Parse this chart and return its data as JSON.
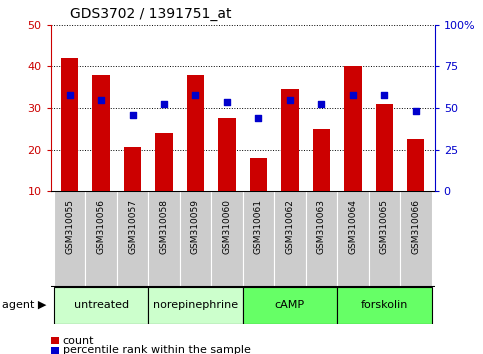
{
  "title": "GDS3702 / 1391751_at",
  "samples": [
    "GSM310055",
    "GSM310056",
    "GSM310057",
    "GSM310058",
    "GSM310059",
    "GSM310060",
    "GSM310061",
    "GSM310062",
    "GSM310063",
    "GSM310064",
    "GSM310065",
    "GSM310066"
  ],
  "count_values": [
    42,
    38,
    20.5,
    24,
    38,
    27.5,
    18,
    34.5,
    25,
    40,
    31,
    22.5
  ],
  "percentile_values": [
    57.5,
    55,
    46,
    52.5,
    57.5,
    53.5,
    44,
    55,
    52.5,
    57.5,
    57.5,
    48
  ],
  "ylim_left": [
    10,
    50
  ],
  "ylim_right": [
    0,
    100
  ],
  "yticks_left": [
    10,
    20,
    30,
    40,
    50
  ],
  "yticks_right": [
    0,
    25,
    50,
    75,
    100
  ],
  "yticklabels_right": [
    "0",
    "25",
    "50",
    "75",
    "100%"
  ],
  "left_tick_color": "#cc0000",
  "right_tick_color": "#0000cc",
  "bar_color": "#cc0000",
  "dot_color": "#0000cc",
  "agent_groups": [
    {
      "label": "untreated",
      "start": 0,
      "end": 3,
      "color": "#ccffcc"
    },
    {
      "label": "norepinephrine",
      "start": 3,
      "end": 6,
      "color": "#ccffcc"
    },
    {
      "label": "cAMP",
      "start": 6,
      "end": 9,
      "color": "#66ff66"
    },
    {
      "label": "forskolin",
      "start": 9,
      "end": 12,
      "color": "#66ff66"
    }
  ],
  "sample_bg_color": "#cccccc",
  "legend_count_color": "#cc0000",
  "legend_pct_color": "#0000cc",
  "legend_count_label": "count",
  "legend_pct_label": "percentile rank within the sample"
}
